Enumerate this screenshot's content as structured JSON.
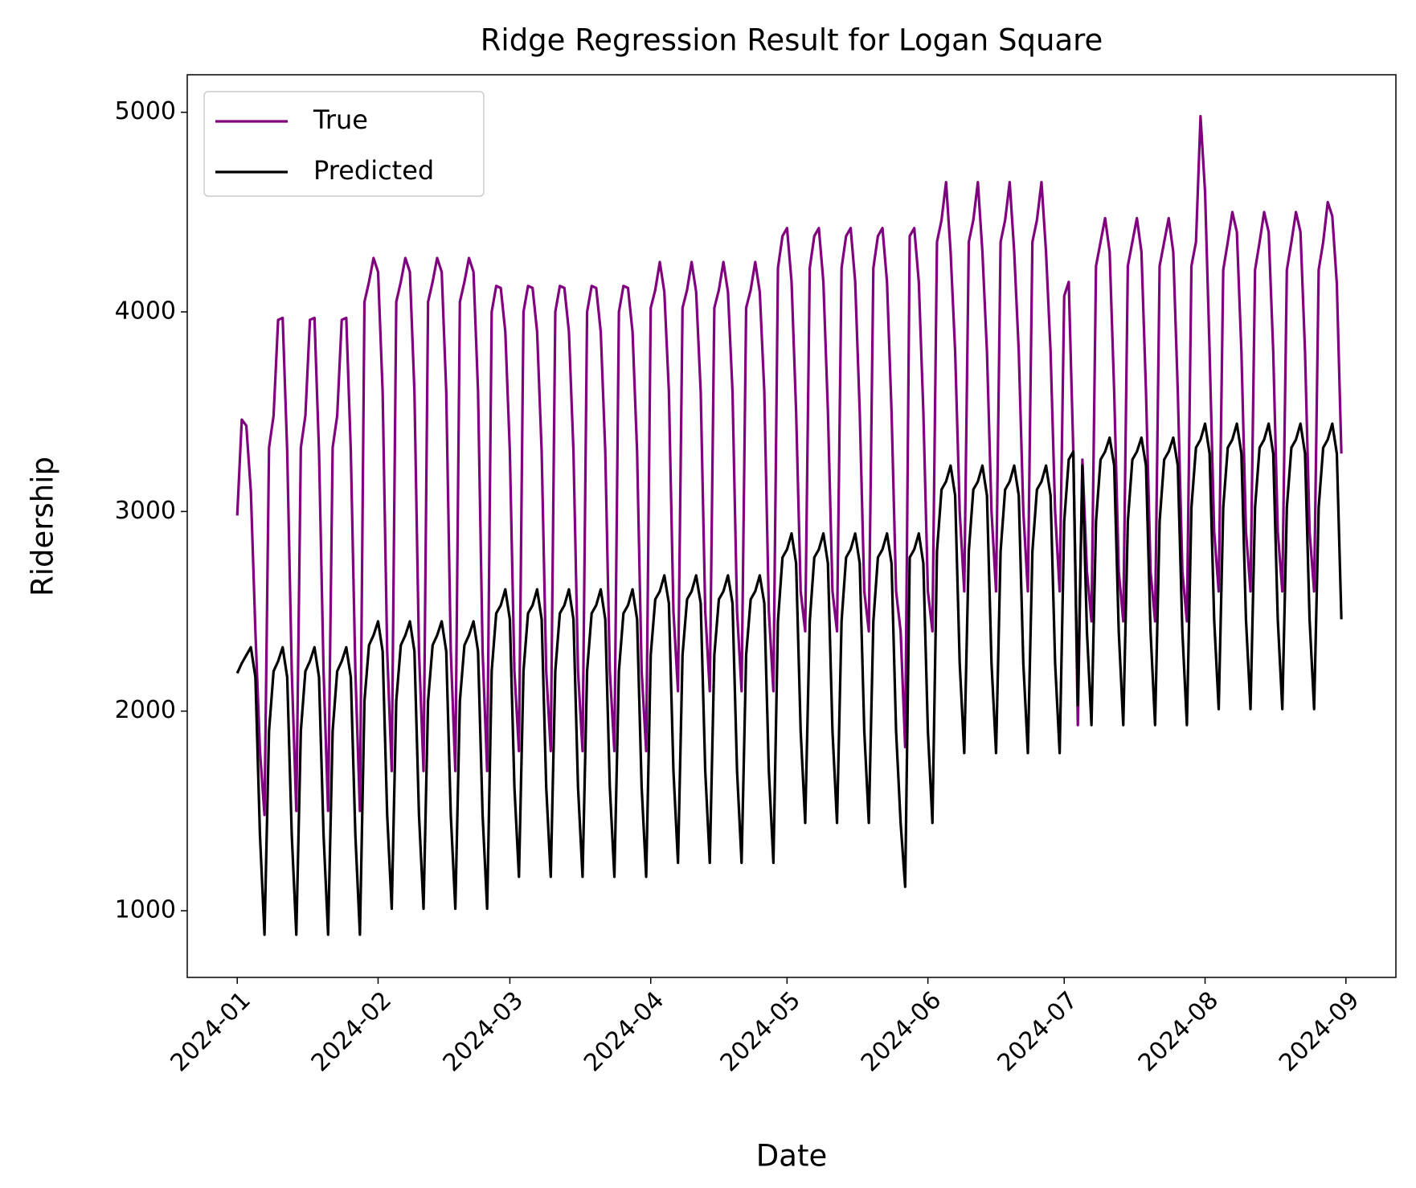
{
  "chart_data": {
    "type": "line",
    "title": "Ridge Regression Result for Logan Square",
    "x_label": "Date",
    "y_label": "Ridership",
    "xlim": [
      -11,
      255
    ],
    "xticks": [
      {
        "value": 0,
        "label": "2024-01"
      },
      {
        "value": 31,
        "label": "2024-02"
      },
      {
        "value": 60,
        "label": "2024-03"
      },
      {
        "value": 91,
        "label": "2024-04"
      },
      {
        "value": 121,
        "label": "2024-05"
      },
      {
        "value": 152,
        "label": "2024-06"
      },
      {
        "value": 182,
        "label": "2024-07"
      },
      {
        "value": 213,
        "label": "2024-08"
      },
      {
        "value": 244,
        "label": "2024-09"
      }
    ],
    "ylim": [
      666,
      5188
    ],
    "yticks": [
      1000,
      2000,
      3000,
      4000,
      5000
    ],
    "legend": "upper left",
    "grid": false,
    "series": [
      {
        "name": "True",
        "color": "#800080",
        "values": [
          2980,
          3460,
          3430,
          3100,
          2400,
          1800,
          1480,
          3320,
          3480,
          3960,
          3970,
          3300,
          2200,
          1500,
          3320,
          3480,
          3960,
          3970,
          3300,
          2200,
          1500,
          3320,
          3480,
          3960,
          3970,
          3300,
          2200,
          1500,
          4050,
          4150,
          4270,
          4200,
          3600,
          2300,
          1700,
          4050,
          4150,
          4270,
          4200,
          3600,
          2300,
          1700,
          4050,
          4150,
          4270,
          4200,
          3600,
          2300,
          1700,
          4050,
          4150,
          4270,
          4200,
          3600,
          2300,
          1700,
          4000,
          4130,
          4120,
          3900,
          3300,
          2200,
          1800,
          4000,
          4130,
          4120,
          3900,
          3300,
          2200,
          1800,
          4000,
          4130,
          4120,
          3900,
          3300,
          2200,
          1800,
          4000,
          4130,
          4120,
          3900,
          3300,
          2200,
          1800,
          4000,
          4130,
          4120,
          3900,
          3300,
          2200,
          1800,
          4020,
          4110,
          4250,
          4100,
          3600,
          2500,
          2100,
          4020,
          4110,
          4250,
          4100,
          3600,
          2500,
          2100,
          4020,
          4110,
          4250,
          4100,
          3600,
          2500,
          2100,
          4020,
          4110,
          4250,
          4100,
          3600,
          2500,
          2100,
          4220,
          4380,
          4420,
          4150,
          3500,
          2600,
          2400,
          4220,
          4380,
          4420,
          4150,
          3500,
          2600,
          2400,
          4220,
          4380,
          4420,
          4150,
          3500,
          2600,
          2400,
          4220,
          4380,
          4420,
          4150,
          3500,
          2600,
          2400,
          1820,
          4380,
          4420,
          4150,
          3500,
          2600,
          2400,
          4350,
          4460,
          4650,
          4300,
          3800,
          3000,
          2600,
          4350,
          4460,
          4650,
          4300,
          3800,
          3000,
          2600,
          4350,
          4460,
          4650,
          4300,
          3800,
          3000,
          2600,
          4350,
          4460,
          4650,
          4300,
          3800,
          3000,
          2600,
          4080,
          4150,
          3300,
          1930,
          3260,
          2700,
          2450,
          4230,
          4350,
          4470,
          4300,
          3600,
          2700,
          2450,
          4230,
          4350,
          4470,
          4300,
          3600,
          2700,
          2450,
          4230,
          4350,
          4470,
          4300,
          3600,
          2700,
          2450,
          4230,
          4350,
          4980,
          4600,
          3800,
          2900,
          2600,
          4210,
          4350,
          4500,
          4400,
          3800,
          2900,
          2600,
          4210,
          4350,
          4500,
          4400,
          3800,
          2900,
          2600,
          4210,
          4350,
          4500,
          4400,
          3800,
          2900,
          2600,
          4210,
          4350,
          4550,
          4480,
          4140,
          3290
        ]
      },
      {
        "name": "Predicted",
        "color": "#000000",
        "values": [
          2190,
          2240,
          2280,
          2320,
          2170,
          1380,
          880,
          1900,
          2200,
          2250,
          2320,
          2170,
          1380,
          880,
          1900,
          2200,
          2250,
          2320,
          2170,
          1380,
          880,
          1900,
          2200,
          2250,
          2320,
          2170,
          1380,
          880,
          2050,
          2330,
          2380,
          2450,
          2300,
          1480,
          1010,
          2050,
          2330,
          2380,
          2450,
          2300,
          1480,
          1010,
          2050,
          2330,
          2380,
          2450,
          2300,
          1480,
          1010,
          2050,
          2330,
          2380,
          2450,
          2300,
          1480,
          1010,
          2200,
          2490,
          2530,
          2610,
          2460,
          1620,
          1170,
          2200,
          2490,
          2530,
          2610,
          2460,
          1620,
          1170,
          2200,
          2490,
          2530,
          2610,
          2460,
          1620,
          1170,
          2200,
          2490,
          2530,
          2610,
          2460,
          1620,
          1170,
          2200,
          2490,
          2530,
          2610,
          2460,
          1620,
          1170,
          2280,
          2560,
          2600,
          2680,
          2540,
          1700,
          1240,
          2280,
          2560,
          2600,
          2680,
          2540,
          1700,
          1240,
          2280,
          2560,
          2600,
          2680,
          2540,
          1700,
          1240,
          2280,
          2560,
          2600,
          2680,
          2540,
          1700,
          1240,
          2450,
          2770,
          2810,
          2890,
          2740,
          1900,
          1440,
          2450,
          2770,
          2810,
          2890,
          2740,
          1900,
          1440,
          2450,
          2770,
          2810,
          2890,
          2740,
          1900,
          1440,
          2450,
          2770,
          2810,
          2890,
          2740,
          1900,
          1440,
          1120,
          2770,
          2810,
          2890,
          2740,
          1900,
          1440,
          2800,
          3110,
          3150,
          3230,
          3080,
          2240,
          1790,
          2800,
          3110,
          3150,
          3230,
          3080,
          2240,
          1790,
          2800,
          3110,
          3150,
          3230,
          3080,
          2240,
          1790,
          2800,
          3110,
          3150,
          3230,
          3080,
          2240,
          1790,
          2950,
          3260,
          3300,
          2030,
          3230,
          2400,
          1930,
          2950,
          3260,
          3300,
          3370,
          3230,
          2400,
          1930,
          2950,
          3260,
          3300,
          3370,
          3230,
          2400,
          1930,
          2950,
          3260,
          3300,
          3370,
          3230,
          2400,
          1930,
          3020,
          3320,
          3360,
          3440,
          3290,
          2460,
          2010,
          3020,
          3320,
          3360,
          3440,
          3290,
          2460,
          2010,
          3020,
          3320,
          3360,
          3440,
          3290,
          2460,
          2010,
          3020,
          3320,
          3360,
          3440,
          3290,
          2460,
          2010,
          3020,
          3320,
          3360,
          3440,
          3290,
          2460
        ]
      }
    ]
  }
}
